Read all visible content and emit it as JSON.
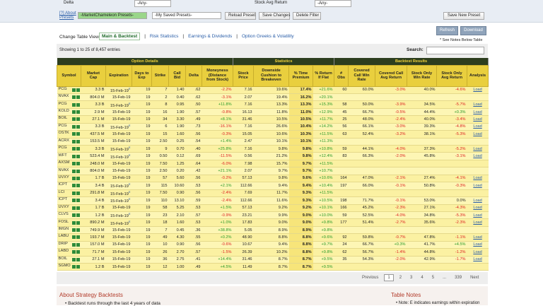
{
  "filters": {
    "label1": "Delta",
    "select1": "-Any-",
    "label2": "Stock Avg Return",
    "select2": "-Any-"
  },
  "toolbar": {
    "about": "[?] About Presets",
    "presets": "-MarketChameleon Presets-",
    "saved": "-My Saved Presets-",
    "reload": "Reload Preset",
    "save": "Save Changes",
    "delete": "Delete Filter",
    "save_new": "Save New Preset"
  },
  "view": {
    "label": "Change Table View:",
    "tabs": [
      "Main & Backtest",
      "Risk Statistics",
      "Earnings & Dividends",
      "Option Greeks & Volatility"
    ]
  },
  "actions": {
    "refresh": "Refresh",
    "download": "Download",
    "notes": "* See Notes Below Table"
  },
  "info": "Showing 1 to 25 of 8,457 entries",
  "search": "Search:",
  "table": {
    "groups": [
      "Option Details",
      "Statistics",
      "Backtest Results"
    ],
    "columns": [
      "Symbol",
      "Market Cap",
      "Expiration",
      "Days to Exp",
      "Strike",
      "Call Bid",
      "Delta",
      "Moneyness (Distance from Stock)",
      "Stock Price",
      "Downside Cushion to Breakeven",
      "% Time Premium",
      "% Return If Flat",
      "# Obs",
      "Covered Call Win Rate",
      "Covered Call Avg Return",
      "Stock Only Win Rate",
      "Stock Only Avg Return",
      "Analysis"
    ],
    "rows": [
      {
        "earnings": "E",
        "cells": [
          "PCG",
          "3.3 B",
          "15-Feb-19",
          "19",
          "7",
          "1.40",
          ".62",
          "-2.2%",
          "7.16",
          "19.6%",
          "17.4%",
          "+21.6%",
          "60",
          "60.0%",
          "-3.0%",
          "40.0%",
          "-4.6%",
          "Load"
        ]
      },
      {
        "earnings": null,
        "cells": [
          "NVAX",
          "804.0 M",
          "15-Feb-19",
          "19",
          "2",
          "0.40",
          ".62",
          "-3.1%",
          "2.07",
          "19.4%",
          "16.2%",
          "+20.1%",
          null,
          null,
          null,
          null,
          null,
          null
        ]
      },
      {
        "earnings": "E",
        "cells": [
          "PCG",
          "3.3 B",
          "15-Feb-19",
          "19",
          "8",
          "0.95",
          ".50",
          "+11.8%",
          "7.16",
          "13.3%",
          "13.3%",
          "+15.3%",
          "58",
          "50.0%",
          "-3.9%",
          "34.5%",
          "-5.7%",
          "Load"
        ]
      },
      {
        "earnings": null,
        "cells": [
          "KOLD",
          "2.9 M",
          "15-Feb-19",
          "19",
          "16",
          "1.90",
          ".57",
          "-0.8%",
          "16.13",
          "11.8%",
          "11.0%",
          "+12.9%",
          "45",
          "66.7%",
          "-0.5%",
          "44.4%",
          "+0.3%",
          "Load"
        ]
      },
      {
        "earnings": null,
        "cells": [
          "BOIL",
          "27.1 M",
          "15-Feb-19",
          "19",
          "34",
          "3.30",
          ".49",
          "+8.1%",
          "31.46",
          "10.5%",
          "10.5%",
          "+11.7%",
          "25",
          "48.0%",
          "-2.4%",
          "40.0%",
          "-3.4%",
          "Load"
        ]
      },
      {
        "earnings": "E",
        "cells": [
          "PCG",
          "3.3 B",
          "15-Feb-19",
          "19",
          "6",
          "1.90",
          ".73",
          "-16.1%",
          "7.16",
          "26.6%",
          "10.4%",
          "+14.2%",
          "56",
          "66.1%",
          "-3.0%",
          "39.3%",
          "-4.8%",
          "Load"
        ]
      },
      {
        "earnings": null,
        "cells": [
          "OSTK",
          "437.5 M",
          "15-Feb-19",
          "19",
          "15",
          "1.60",
          ".56",
          "-0.3%",
          "15.05",
          "10.6%",
          "10.3%",
          "+11.5%",
          "63",
          "52.4%",
          "-3.2%",
          "38.1%",
          "-5.3%",
          "Load"
        ]
      },
      {
        "earnings": null,
        "cells": [
          "ACRX",
          "153.5 M",
          "15-Feb-19",
          "19",
          "2.50",
          "0.25",
          ".54",
          "+1.4%",
          "2.47",
          "10.1%",
          "10.1%",
          "+11.3%",
          null,
          null,
          null,
          null,
          null,
          null
        ]
      },
      {
        "earnings": "E",
        "cells": [
          "PCG",
          "3.3 B",
          "15-Feb-19",
          "19",
          "9",
          "0.70",
          ".40",
          "+25.8%",
          "7.16",
          "9.8%",
          "9.8%",
          "+10.8%",
          "59",
          "44.1%",
          "-4.0%",
          "37.3%",
          "-5.2%",
          "Load"
        ]
      },
      {
        "earnings": "E",
        "cells": [
          "WFT",
          "523.4 M",
          "15-Feb-19",
          "19",
          "0.50",
          "0.12",
          ".69",
          "-11.5%",
          "0.56",
          "21.2%",
          "9.8%",
          "+12.4%",
          "83",
          "66.3%",
          "-2.0%",
          "45.8%",
          "-3.1%",
          "Load"
        ]
      },
      {
        "earnings": null,
        "cells": [
          "AXSM",
          "248.0 M",
          "15-Feb-19",
          "19",
          "7.50",
          "1.25",
          ".64",
          "-6.0%",
          "7.98",
          "15.7%",
          "9.7%",
          "+11.5%",
          null,
          null,
          null,
          null,
          null,
          null
        ]
      },
      {
        "earnings": null,
        "cells": [
          "NVAX",
          "804.0 M",
          "15-Feb-19",
          "19",
          "2.50",
          "0.20",
          ".42",
          "+21.1%",
          "2.07",
          "9.7%",
          "9.7%",
          "+10.7%",
          null,
          null,
          null,
          null,
          null,
          null
        ]
      },
      {
        "earnings": null,
        "cells": [
          "UVXY",
          "1.7 B",
          "15-Feb-19",
          "19",
          "57",
          "5.60",
          ".56",
          "-0.2%",
          "57.13",
          "9.8%",
          "9.6%",
          "+10.6%",
          "164",
          "47.0%",
          "-2.1%",
          "27.4%",
          "-4.1%",
          "Load"
        ]
      },
      {
        "earnings": "E",
        "cells": [
          "ICPT",
          "3.4 B",
          "15-Feb-19",
          "19",
          "115",
          "10.60",
          ".53",
          "+2.1%",
          "112.66",
          "9.4%",
          "9.4%",
          "+10.4%",
          "197",
          "66.0%",
          "-0.1%",
          "50.8%",
          "-0.3%",
          "Load"
        ]
      },
      {
        "earnings": "E",
        "cells": [
          "LCI",
          "291.8 M",
          "15-Feb-19",
          "19",
          "7.50",
          "0.90",
          ".56",
          "-2.4%",
          "7.69",
          "11.7%",
          "9.3%",
          "+11.5%",
          null,
          null,
          null,
          null,
          null,
          null
        ]
      },
      {
        "earnings": "E",
        "cells": [
          "ICPT",
          "3.4 B",
          "15-Feb-19",
          "19",
          "110",
          "13.10",
          ".59",
          "-2.4%",
          "112.66",
          "11.6%",
          "9.3%",
          "+10.5%",
          "198",
          "71.7%",
          "-0.1%",
          "53.0%",
          "0.0%",
          "Load"
        ]
      },
      {
        "earnings": null,
        "cells": [
          "UVXY",
          "1.7 B",
          "15-Feb-19",
          "19",
          "58",
          "5.25",
          ".53",
          "+1.5%",
          "57.13",
          "9.2%",
          "9.2%",
          "+10.1%",
          "166",
          "45.2%",
          "-2.3%",
          "27.1%",
          "-4.3%",
          "Load"
        ]
      },
      {
        "earnings": "E",
        "cells": [
          "CLVS",
          "1.2 B",
          "15-Feb-19",
          "19",
          "23",
          "2.10",
          ".57",
          "-0.9%",
          "23.21",
          "9.9%",
          "9.0%",
          "+10.0%",
          "59",
          "52.5%",
          "-4.0%",
          "34.8%",
          "-5.3%",
          "Load"
        ]
      },
      {
        "earnings": "E",
        "cells": [
          "FOSL",
          "890.2 M",
          "15-Feb-19",
          "19",
          "18",
          "1.60",
          ".53",
          "+1.0%",
          "17.83",
          "9.0%",
          "9.0%",
          "+9.8%",
          "177",
          "51.4%",
          "-2.7%",
          "35.6%",
          "-2.3%",
          "Load"
        ]
      },
      {
        "earnings": null,
        "cells": [
          "IMGN",
          "749.9 M",
          "15-Feb-19",
          "19",
          "7",
          "0.45",
          ".36",
          "+38.8%",
          "5.05",
          "8.9%",
          "8.9%",
          "+9.8%",
          null,
          null,
          null,
          null,
          null,
          null
        ]
      },
      {
        "earnings": null,
        "cells": [
          "LABU",
          "193.7 M",
          "15-Feb-19",
          "19",
          "49",
          "4.30",
          ".55",
          "+0.2%",
          "48.90",
          "8.8%",
          "8.8%",
          "+9.6%",
          "92",
          "59.8%",
          "-0.7%",
          "47.8%",
          "-1.1%",
          "Load"
        ]
      },
      {
        "earnings": null,
        "cells": [
          "DRIP",
          "157.0 M",
          "15-Feb-19",
          "19",
          "10",
          "0.90",
          ".56",
          "-0.6%",
          "10.67",
          "9.4%",
          "8.8%",
          "+9.7%",
          "24",
          "66.7%",
          "+0.3%",
          "41.7%",
          "+4.5%",
          "Load"
        ]
      },
      {
        "earnings": null,
        "cells": [
          "LABD",
          "71.7 M",
          "15-Feb-19",
          "19",
          "26",
          "2.70",
          ".57",
          "-1.5%",
          "26.39",
          "10.2%",
          "8.8%",
          "+9.8%",
          "62",
          "56.7%",
          "-1.4%",
          "44.8%",
          "-1.2%",
          "Load"
        ]
      },
      {
        "earnings": null,
        "cells": [
          "BOIL",
          "27.1 M",
          "15-Feb-19",
          "19",
          "36",
          "2.75",
          ".41",
          "+14.4%",
          "31.46",
          "8.7%",
          "8.7%",
          "+9.5%",
          "35",
          "54.3%",
          "-2.0%",
          "42.9%",
          "-1.7%",
          "Load"
        ]
      },
      {
        "earnings": null,
        "cells": [
          "SGMO",
          "1.2 B",
          "15-Feb-19",
          "19",
          "12",
          "1.00",
          ".49",
          "+4.5%",
          "11.49",
          "8.7%",
          "8.7%",
          "+9.5%",
          null,
          null,
          null,
          null,
          null,
          null
        ]
      }
    ]
  },
  "pagination": [
    "Previous",
    "1",
    "2",
    "3",
    "4",
    "5",
    "...",
    "339",
    "Next"
  ],
  "about": {
    "title": "About Strategy Backtests",
    "text": "Backtest runs through the last 4 years of data"
  },
  "notes": {
    "title": "Table Notes",
    "text": "Note: E indicates earnings within expiration"
  }
}
